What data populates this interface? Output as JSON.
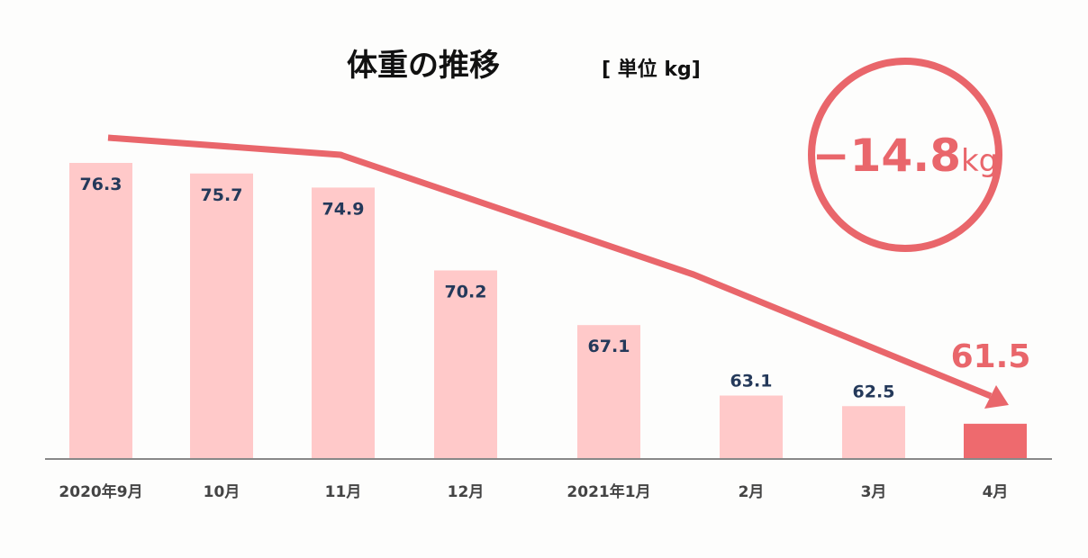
{
  "chart_data": {
    "type": "bar",
    "title": "体重の推移",
    "unit_label": "[ 単位 kg]",
    "categories": [
      "2020年9月",
      "10月",
      "11月",
      "12月",
      "2021年1月",
      "2月",
      "3月",
      "4月"
    ],
    "values": [
      76.3,
      75.7,
      74.9,
      70.2,
      67.1,
      63.1,
      62.5,
      61.5
    ],
    "value_labels": [
      "76.3",
      "75.7",
      "74.9",
      "70.2",
      "67.1",
      "63.1",
      "62.5",
      "61.5"
    ],
    "ylim": [
      59.5,
      77
    ],
    "grid": false,
    "trend_arrow": "decreasing",
    "badge": {
      "value": "−14.8",
      "unit": "kg"
    },
    "colors": {
      "bar": "#ffc9c9",
      "highlight_bar": "#ee6a6e",
      "accent": "#e9666b",
      "value_label": "#24395a",
      "axis": "#888888"
    }
  }
}
